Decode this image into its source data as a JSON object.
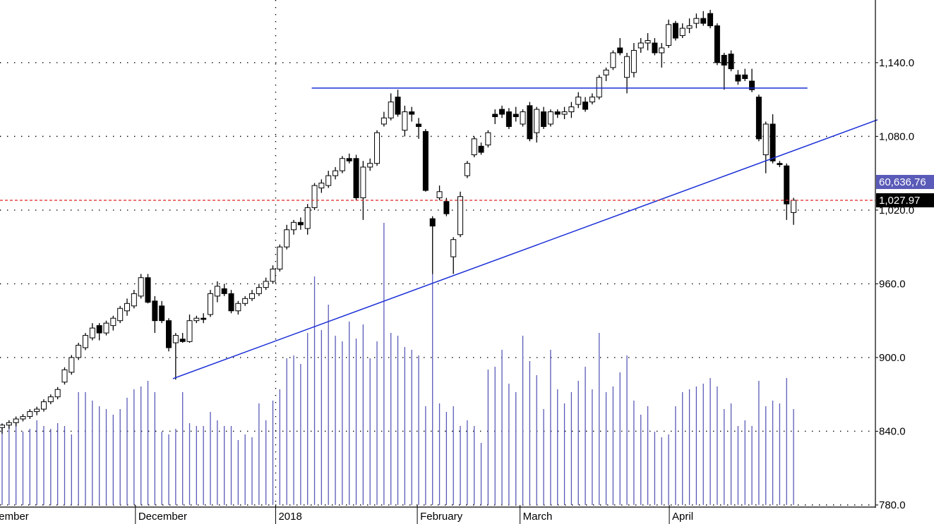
{
  "chart_data": {
    "type": "candlestick",
    "ylim": [
      780,
      1191
    ],
    "yticks": [
      {
        "value": 780,
        "label": "780.0"
      },
      {
        "value": 840,
        "label": "840.0"
      },
      {
        "value": 900,
        "label": "900.0"
      },
      {
        "value": 960,
        "label": "960.0"
      },
      {
        "value": 1020,
        "label": "1,020.0"
      },
      {
        "value": 1080,
        "label": "1,080.0"
      },
      {
        "value": 1140,
        "label": "1,140.0"
      }
    ],
    "grid": true,
    "month_labels": [
      "November",
      "December",
      "2018",
      "February",
      "March",
      "April"
    ],
    "month_positions": [
      -3.6,
      19.2,
      39.4,
      59.8,
      74.6,
      96.1
    ],
    "candles": [
      [
        843,
        846,
        838,
        845
      ],
      [
        845,
        849,
        842,
        847
      ],
      [
        847,
        852,
        844,
        850
      ],
      [
        850,
        854,
        848,
        852
      ],
      [
        852,
        858,
        850,
        856
      ],
      [
        856,
        860,
        853,
        858
      ],
      [
        858,
        866,
        856,
        864
      ],
      [
        864,
        870,
        862,
        868
      ],
      [
        868,
        876,
        866,
        874
      ],
      [
        880,
        892,
        878,
        890
      ],
      [
        888,
        902,
        886,
        900
      ],
      [
        900,
        912,
        898,
        910
      ],
      [
        908,
        920,
        906,
        918
      ],
      [
        916,
        928,
        914,
        924
      ],
      [
        926,
        928,
        914,
        920
      ],
      [
        920,
        930,
        918,
        928
      ],
      [
        926,
        934,
        922,
        932
      ],
      [
        930,
        942,
        928,
        940
      ],
      [
        938,
        948,
        934,
        944
      ],
      [
        942,
        955,
        940,
        952
      ],
      [
        950,
        968,
        948,
        965
      ],
      [
        965,
        968,
        944,
        945
      ],
      [
        946,
        950,
        920,
        930
      ],
      [
        942,
        946,
        928,
        930
      ],
      [
        930,
        932,
        905,
        908
      ],
      [
        912,
        920,
        882,
        918
      ],
      [
        915,
        920,
        912,
        913
      ],
      [
        913,
        935,
        912,
        930
      ],
      [
        930,
        934,
        928,
        932
      ],
      [
        932,
        936,
        928,
        931
      ],
      [
        935,
        955,
        933,
        952
      ],
      [
        950,
        962,
        945,
        958
      ],
      [
        956,
        960,
        950,
        952
      ],
      [
        952,
        955,
        936,
        938
      ],
      [
        938,
        946,
        935,
        944
      ],
      [
        944,
        950,
        942,
        948
      ],
      [
        948,
        955,
        946,
        952
      ],
      [
        952,
        960,
        950,
        957
      ],
      [
        957,
        965,
        955,
        962
      ],
      [
        962,
        975,
        960,
        972
      ],
      [
        972,
        992,
        970,
        990
      ],
      [
        990,
        1008,
        988,
        1004
      ],
      [
        1004,
        1012,
        1000,
        1010
      ],
      [
        1010,
        1014,
        1004,
        1008
      ],
      [
        1005,
        1025,
        1000,
        1022
      ],
      [
        1022,
        1042,
        1020,
        1040
      ],
      [
        1038,
        1045,
        1034,
        1042
      ],
      [
        1040,
        1052,
        1038,
        1048
      ],
      [
        1048,
        1055,
        1045,
        1052
      ],
      [
        1052,
        1064,
        1050,
        1062
      ],
      [
        1062,
        1066,
        1058,
        1060
      ],
      [
        1062,
        1065,
        1028,
        1030
      ],
      [
        1030,
        1060,
        1012,
        1055
      ],
      [
        1055,
        1062,
        1052,
        1058
      ],
      [
        1058,
        1085,
        1056,
        1083
      ],
      [
        1090,
        1100,
        1088,
        1095
      ],
      [
        1095,
        1115,
        1093,
        1108
      ],
      [
        1112,
        1118,
        1096,
        1098
      ],
      [
        1085,
        1105,
        1080,
        1100
      ],
      [
        1100,
        1104,
        1092,
        1098
      ],
      [
        1090,
        1095,
        1078,
        1088
      ],
      [
        1084,
        1086,
        1035,
        1036
      ],
      [
        1013,
        1015,
        968,
        1007
      ],
      [
        1030,
        1040,
        1028,
        1035
      ],
      [
        1027,
        1030,
        1015,
        1017
      ],
      [
        982,
        998,
        968,
        996
      ],
      [
        1000,
        1035,
        998,
        1031
      ],
      [
        1048,
        1060,
        1046,
        1058
      ],
      [
        1065,
        1080,
        1063,
        1078
      ],
      [
        1072,
        1075,
        1065,
        1067
      ],
      [
        1073,
        1085,
        1071,
        1083
      ],
      [
        1098,
        1102,
        1090,
        1096
      ],
      [
        1102,
        1105,
        1095,
        1098
      ],
      [
        1100,
        1103,
        1086,
        1088
      ],
      [
        1098,
        1104,
        1092,
        1096
      ],
      [
        1090,
        1102,
        1088,
        1100
      ],
      [
        1105,
        1108,
        1076,
        1078
      ],
      [
        1083,
        1104,
        1075,
        1102
      ],
      [
        1100,
        1104,
        1086,
        1088
      ],
      [
        1090,
        1102,
        1088,
        1100
      ],
      [
        1100,
        1102,
        1095,
        1098
      ],
      [
        1098,
        1104,
        1094,
        1100
      ],
      [
        1100,
        1108,
        1095,
        1104
      ],
      [
        1106,
        1116,
        1103,
        1112
      ],
      [
        1108,
        1112,
        1100,
        1102
      ],
      [
        1108,
        1115,
        1106,
        1112
      ],
      [
        1112,
        1130,
        1110,
        1128
      ],
      [
        1130,
        1136,
        1125,
        1134
      ],
      [
        1136,
        1150,
        1134,
        1148
      ],
      [
        1152,
        1160,
        1146,
        1148
      ],
      [
        1128,
        1148,
        1115,
        1145
      ],
      [
        1132,
        1156,
        1128,
        1150
      ],
      [
        1152,
        1160,
        1148,
        1156
      ],
      [
        1156,
        1164,
        1150,
        1158
      ],
      [
        1156,
        1160,
        1146,
        1148
      ],
      [
        1148,
        1156,
        1136,
        1152
      ],
      [
        1154,
        1175,
        1152,
        1171
      ],
      [
        1172,
        1174,
        1158,
        1160
      ],
      [
        1162,
        1172,
        1160,
        1168
      ],
      [
        1168,
        1176,
        1164,
        1170
      ],
      [
        1172,
        1180,
        1168,
        1176
      ],
      [
        1176,
        1182,
        1170,
        1172
      ],
      [
        1180,
        1183,
        1168,
        1170
      ],
      [
        1170,
        1172,
        1138,
        1140
      ],
      [
        1146,
        1148,
        1118,
        1138
      ],
      [
        1147,
        1150,
        1133,
        1135
      ],
      [
        1130,
        1134,
        1122,
        1125
      ],
      [
        1130,
        1135,
        1125,
        1127
      ],
      [
        1125,
        1135,
        1116,
        1118
      ],
      [
        1112,
        1114,
        1076,
        1078
      ],
      [
        1065,
        1092,
        1050,
        1090
      ],
      [
        1090,
        1098,
        1058,
        1060
      ],
      [
        1058,
        1060,
        1055,
        1057
      ],
      [
        1056,
        1058,
        1012,
        1025
      ],
      [
        1018,
        1030,
        1008,
        1028
      ]
    ],
    "volume": [
      29,
      29,
      30,
      26,
      27,
      30,
      28,
      27,
      29,
      28,
      25,
      40,
      40,
      37,
      35,
      34,
      32,
      34,
      38,
      41,
      42,
      44,
      40,
      26,
      25,
      27,
      40,
      29,
      28,
      28,
      33,
      30,
      28,
      28,
      23,
      25,
      24,
      36,
      30,
      37,
      41,
      52,
      53,
      50,
      61,
      81,
      62,
      71,
      60,
      58,
      65,
      59,
      64,
      52,
      58,
      100,
      61,
      60,
      56,
      55,
      53,
      35,
      82,
      36,
      33,
      35,
      28,
      30,
      28,
      22,
      48,
      49,
      55,
      43,
      40,
      60,
      51,
      46,
      34,
      55,
      41,
      36,
      40,
      44,
      49,
      41,
      61,
      40,
      42,
      47,
      53,
      37,
      32,
      35,
      26,
      24,
      25,
      35,
      40,
      41,
      42,
      43,
      45,
      42,
      34,
      36,
      28,
      30,
      28,
      44,
      35,
      37,
      36,
      45,
      34
    ],
    "y2lim": [
      0,
      100
    ],
    "candle_color": "#000000",
    "volume_color": "#5a5ab8",
    "trendline_color": "#1a2fd6",
    "trendlines": [
      {
        "x": [
          44.6,
          116
        ],
        "y": [
          1119.3,
          1119.3
        ]
      },
      {
        "x": [
          24.6,
          126.1
        ],
        "y": [
          882.8,
          1093.5
        ]
      }
    ],
    "last_price": {
      "value": 1027.97,
      "label": "1,027.97"
    },
    "last_price_color": "#e02020",
    "volume_label": "60,636,76"
  }
}
